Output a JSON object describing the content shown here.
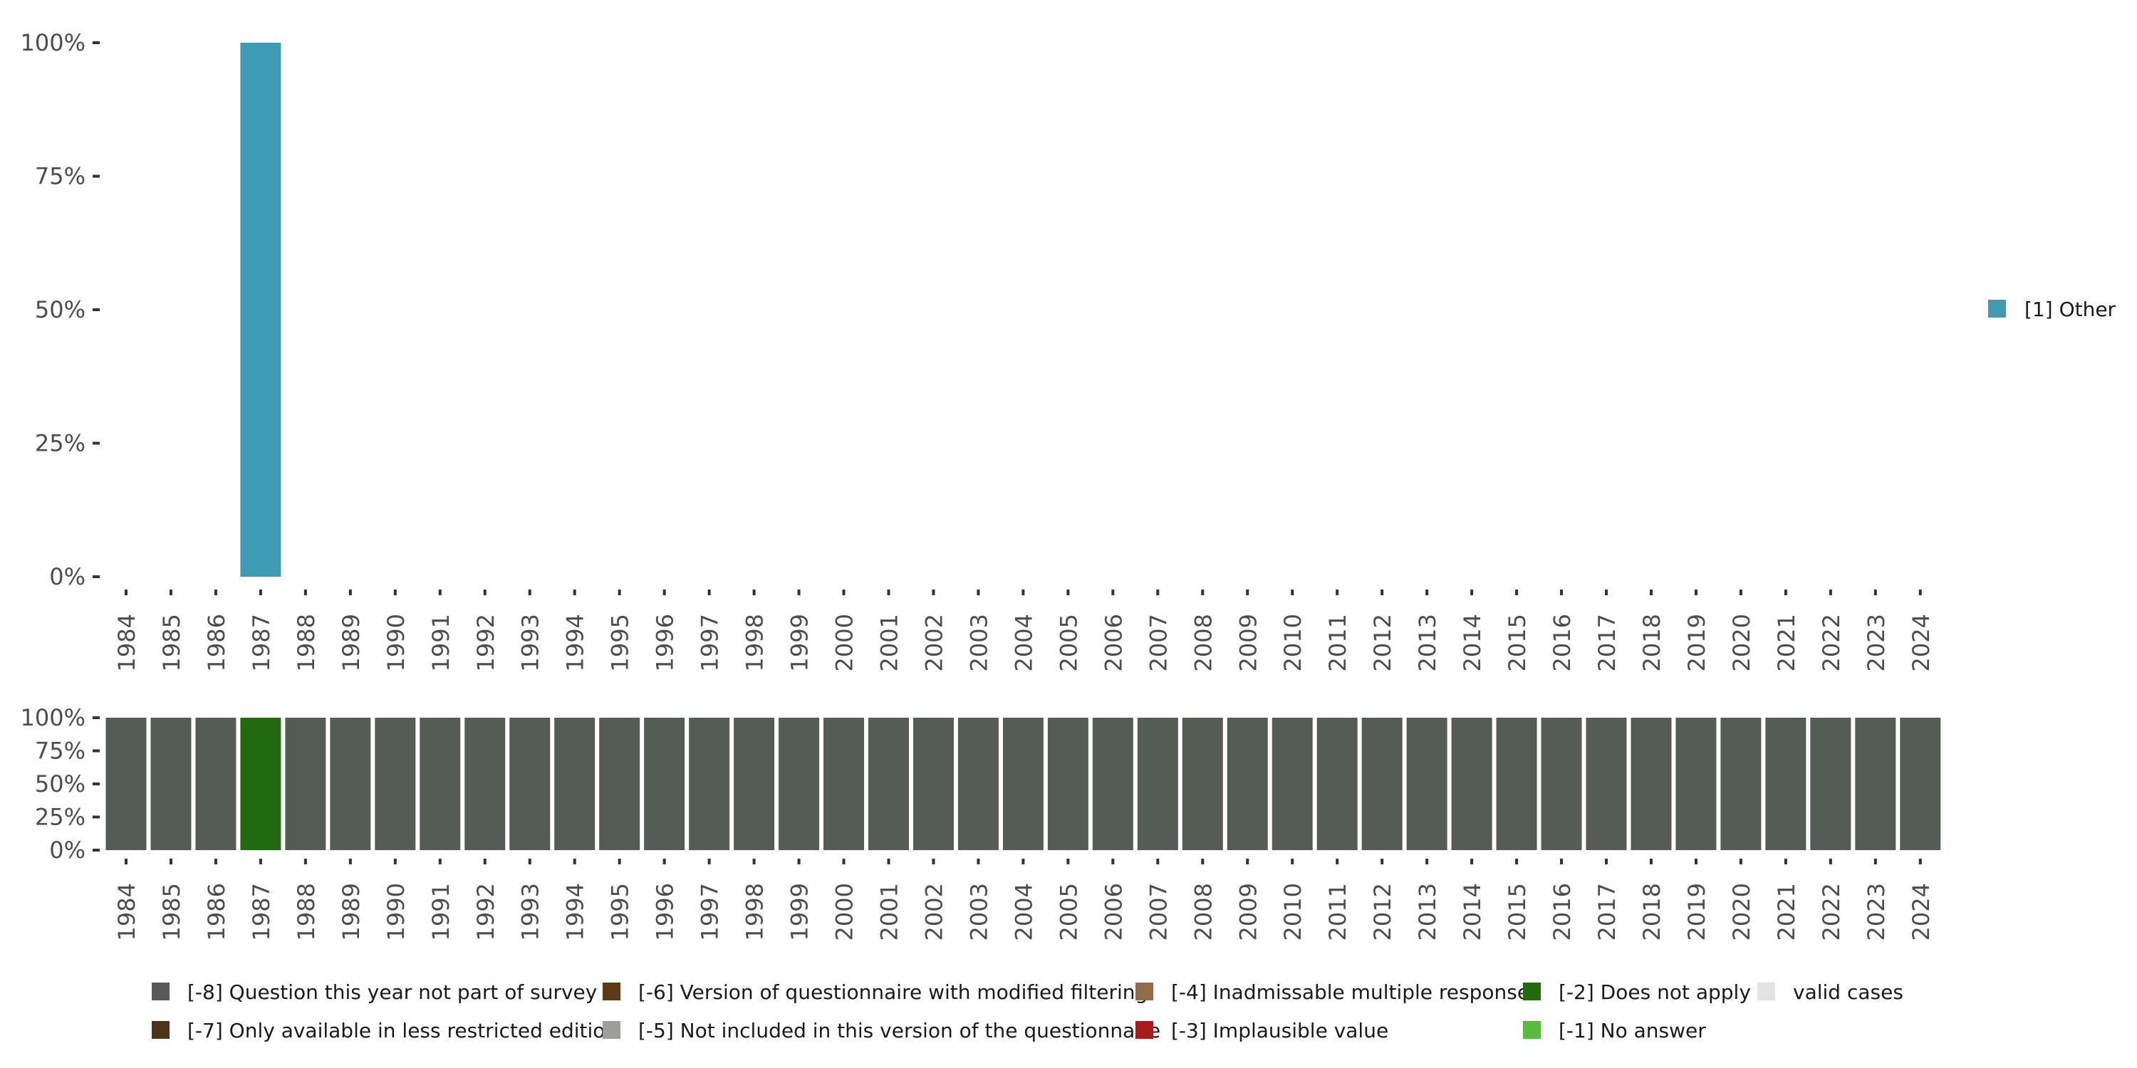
{
  "chart_data": [
    {
      "type": "bar",
      "stacked": true,
      "title": "",
      "xlabel": "",
      "ylabel": "",
      "ylim": [
        0,
        100
      ],
      "yticks": [
        "0%",
        "25%",
        "50%",
        "75%",
        "100%"
      ],
      "categories": [
        "1984",
        "1985",
        "1986",
        "1987",
        "1988",
        "1989",
        "1990",
        "1991",
        "1992",
        "1993",
        "1994",
        "1995",
        "1996",
        "1997",
        "1998",
        "1999",
        "2000",
        "2001",
        "2002",
        "2003",
        "2004",
        "2005",
        "2006",
        "2007",
        "2008",
        "2009",
        "2010",
        "2011",
        "2012",
        "2013",
        "2014",
        "2015",
        "2016",
        "2017",
        "2018",
        "2019",
        "2020",
        "2021",
        "2022",
        "2023",
        "2024"
      ],
      "series": [
        {
          "name": "[1] Other",
          "color": "#3d9cb3",
          "values": [
            0,
            0,
            0,
            100,
            0,
            0,
            0,
            0,
            0,
            0,
            0,
            0,
            0,
            0,
            0,
            0,
            0,
            0,
            0,
            0,
            0,
            0,
            0,
            0,
            0,
            0,
            0,
            0,
            0,
            0,
            0,
            0,
            0,
            0,
            0,
            0,
            0,
            0,
            0,
            0,
            0
          ]
        }
      ],
      "legend": "right"
    },
    {
      "type": "bar",
      "stacked": true,
      "ylim": [
        0,
        100
      ],
      "yticks": [
        "0%",
        "25%",
        "50%",
        "75%",
        "100%"
      ],
      "categories": [
        "1984",
        "1985",
        "1986",
        "1987",
        "1988",
        "1989",
        "1990",
        "1991",
        "1992",
        "1993",
        "1994",
        "1995",
        "1996",
        "1997",
        "1998",
        "1999",
        "2000",
        "2001",
        "2002",
        "2003",
        "2004",
        "2005",
        "2006",
        "2007",
        "2008",
        "2009",
        "2010",
        "2011",
        "2012",
        "2013",
        "2014",
        "2015",
        "2016",
        "2017",
        "2018",
        "2019",
        "2020",
        "2021",
        "2022",
        "2023",
        "2024"
      ],
      "series": [
        {
          "name": "[-8] Question this year not part of survey",
          "color": "#555b55",
          "values": [
            100,
            100,
            100,
            0,
            100,
            100,
            100,
            100,
            100,
            100,
            100,
            100,
            100,
            100,
            100,
            100,
            100,
            100,
            100,
            100,
            100,
            100,
            100,
            100,
            100,
            100,
            100,
            100,
            100,
            100,
            100,
            100,
            100,
            100,
            100,
            100,
            100,
            100,
            100,
            100,
            100
          ]
        },
        {
          "name": "[-2] Does not apply",
          "color": "#226a10",
          "values": [
            0,
            0,
            0,
            100,
            0,
            0,
            0,
            0,
            0,
            0,
            0,
            0,
            0,
            0,
            0,
            0,
            0,
            0,
            0,
            0,
            0,
            0,
            0,
            0,
            0,
            0,
            0,
            0,
            0,
            0,
            0,
            0,
            0,
            0,
            0,
            0,
            0,
            0,
            0,
            0,
            0
          ]
        }
      ],
      "legend": "bottom",
      "legend_items": [
        {
          "name": "[-8] Question this year not part of survey",
          "color": "#555b55"
        },
        {
          "name": "[-7] Only available in less restricted edition",
          "color": "#4e3319"
        },
        {
          "name": "[-6] Version of questionnaire with modified filtering",
          "color": "#5c3a18"
        },
        {
          "name": "[-5] Not included in this version of the questionnaire",
          "color": "#9c9e9a"
        },
        {
          "name": "[-4] Inadmissable multiple response",
          "color": "#926b4a"
        },
        {
          "name": "[-3] Implausible value",
          "color": "#a61c1c"
        },
        {
          "name": "[-2] Does not apply",
          "color": "#226a10"
        },
        {
          "name": "[-1] No answer",
          "color": "#59ba3e"
        },
        {
          "name": "valid cases",
          "color": "#e2e4e0"
        }
      ]
    }
  ]
}
